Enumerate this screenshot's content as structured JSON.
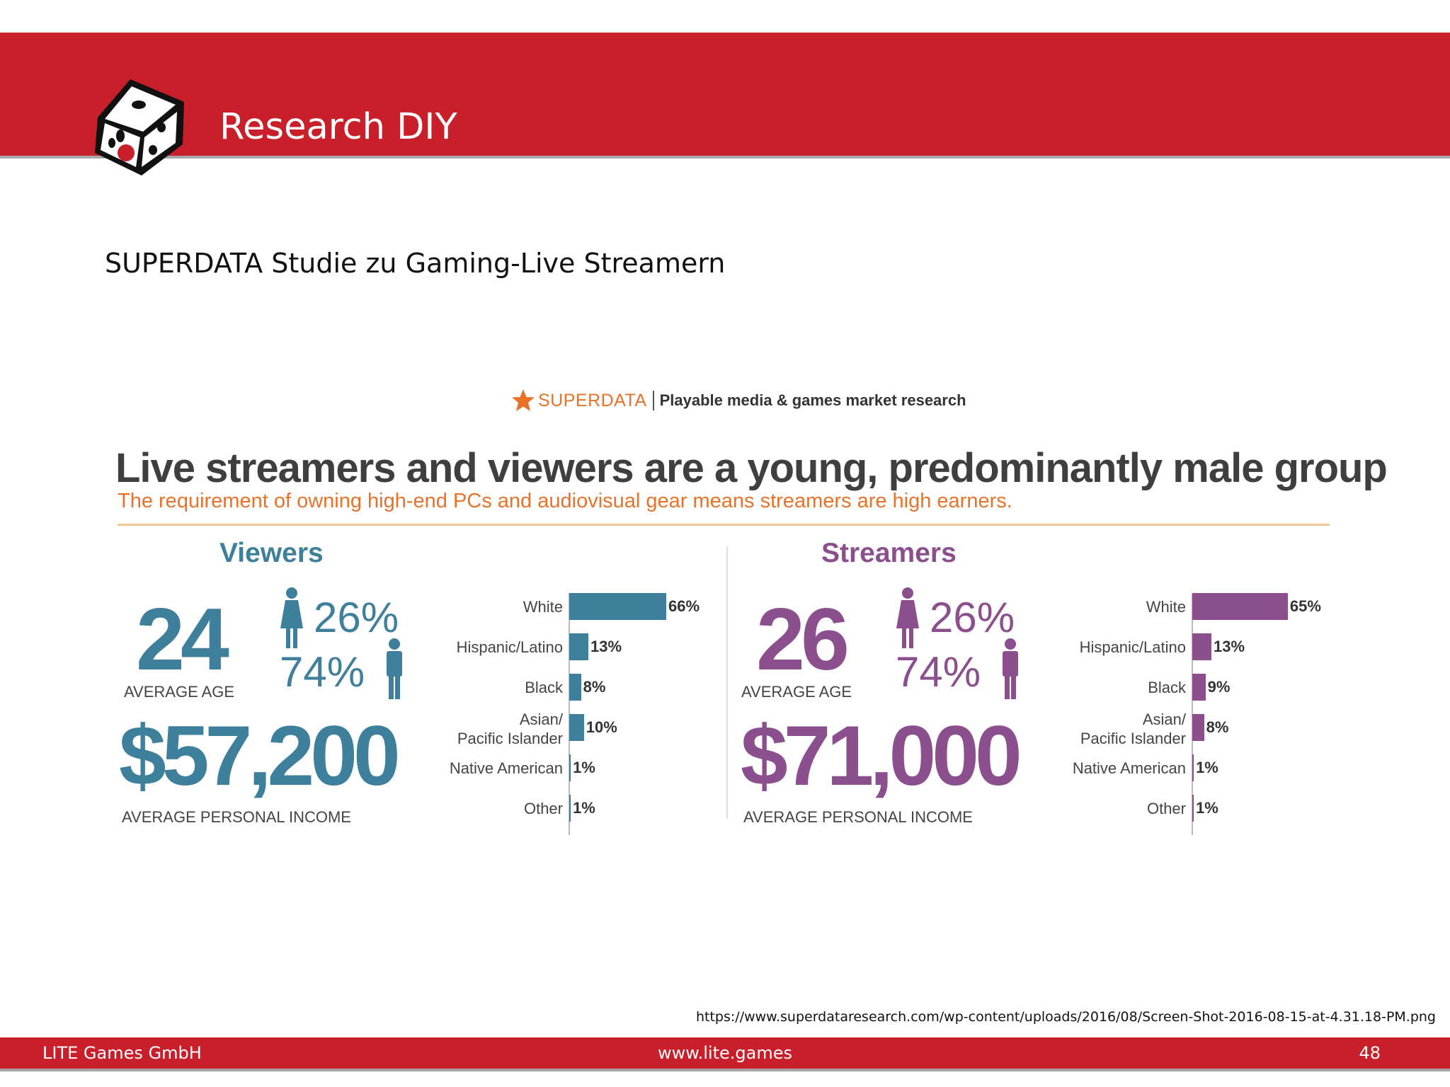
{
  "slide": {
    "title": "Research DIY",
    "subtitle": "SUPERDATA Studie zu Gaming-Live Streamern",
    "source_url": "https://www.superdataresearch.com/wp-content/uploads/2016/08/Screen-Shot-2016-08-15-at-4.31.18-PM.png",
    "footer_left": "LITE Games GmbH",
    "footer_center": "www.lite.games",
    "page_number": "48"
  },
  "colors": {
    "brand_red": "#c91f2b",
    "viewers": "#3e7f9c",
    "streamers": "#8b4f8e",
    "orange": "#e8722a"
  },
  "infographic": {
    "brand_name": "SUPERDATA",
    "brand_tagline": "Playable media & games market research",
    "headline": "Live streamers and viewers are a young, predominantly male group",
    "subheadline": "The requirement of owning high-end PCs and audiovisual gear means streamers are high earners.",
    "viewers": {
      "heading": "Viewers",
      "age": "24",
      "age_label": "AVERAGE AGE",
      "female_pct": "26%",
      "male_pct": "74%",
      "income": "$57,200",
      "income_label": "AVERAGE PERSONAL INCOME"
    },
    "streamers": {
      "heading": "Streamers",
      "age": "26",
      "age_label": "AVERAGE AGE",
      "female_pct": "26%",
      "male_pct": "74%",
      "income": "$71,000",
      "income_label": "AVERAGE PERSONAL INCOME"
    }
  },
  "chart_data": [
    {
      "type": "bar",
      "orientation": "horizontal",
      "series_label": "Viewers",
      "categories": [
        "White",
        "Hispanic/Latino",
        "Black",
        "Asian/\nPacific Islander",
        "Native American",
        "Other"
      ],
      "values": [
        66,
        13,
        8,
        10,
        1,
        1
      ],
      "value_labels": [
        "66%",
        "13%",
        "8%",
        "10%",
        "1%",
        "1%"
      ],
      "color": "#3e7f9c"
    },
    {
      "type": "bar",
      "orientation": "horizontal",
      "series_label": "Streamers",
      "categories": [
        "White",
        "Hispanic/Latino",
        "Black",
        "Asian/\nPacific Islander",
        "Native American",
        "Other"
      ],
      "values": [
        65,
        13,
        9,
        8,
        1,
        1
      ],
      "value_labels": [
        "65%",
        "13%",
        "9%",
        "8%",
        "1%",
        "1%"
      ],
      "color": "#8b4f8e"
    }
  ]
}
